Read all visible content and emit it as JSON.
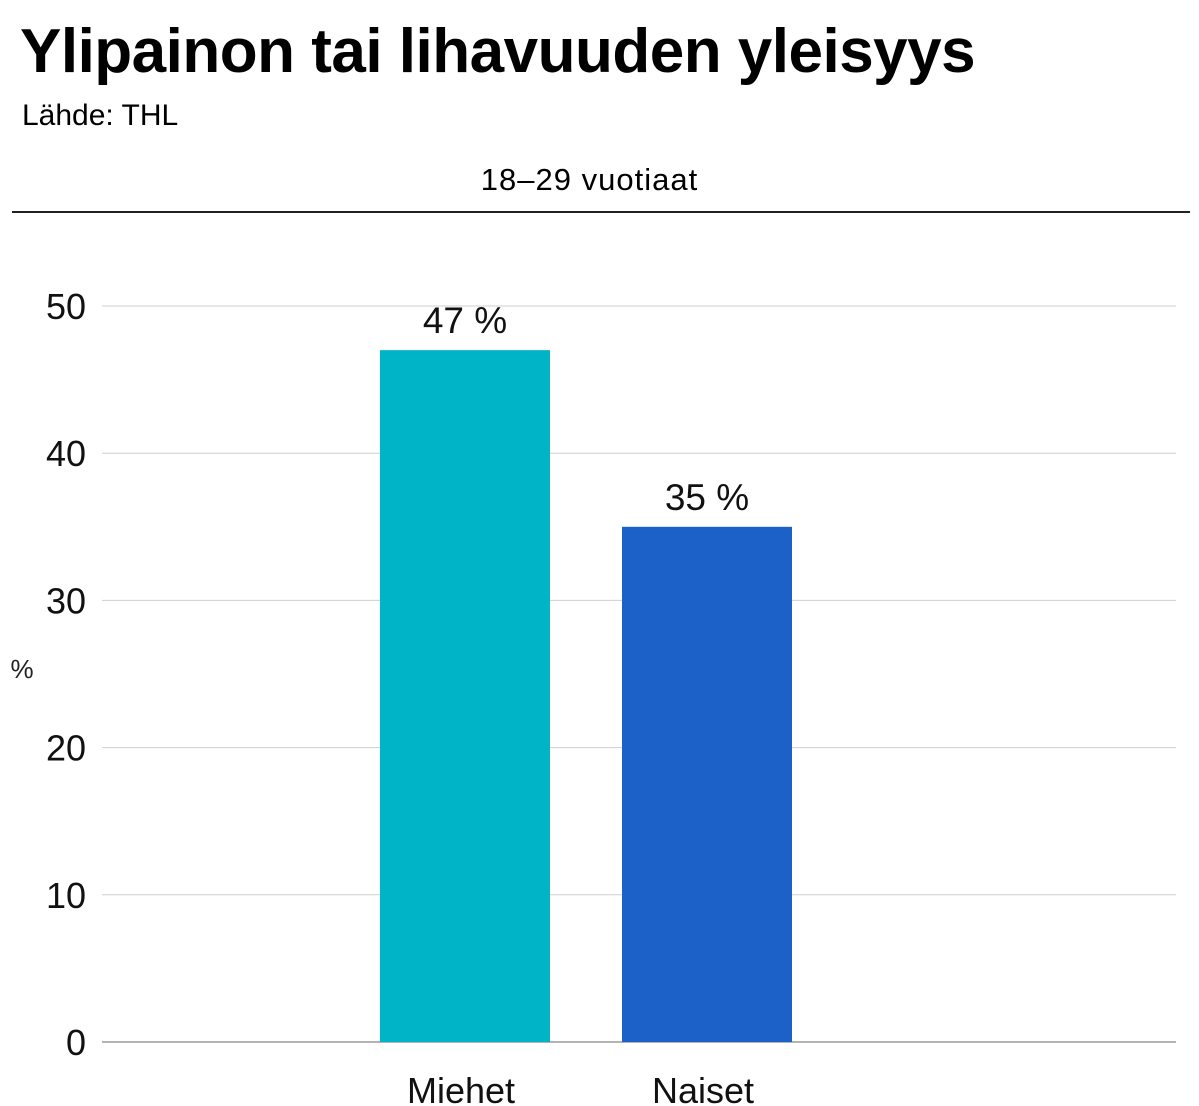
{
  "header": {
    "title": "Ylipainon tai lihavuuden yleisyys",
    "source": "Lähde: THL"
  },
  "chart_data": {
    "type": "bar",
    "title": "Ylipainon tai lihavuuden yleisyys",
    "subtitle": "18–29 vuotiaat",
    "categories": [
      "Miehet",
      "Naiset"
    ],
    "values": [
      47,
      35
    ],
    "data_labels": [
      "47 %",
      "35 %"
    ],
    "colors": [
      "#00b4c8",
      "#1c61c8"
    ],
    "xlabel": "",
    "ylabel": "%",
    "ylim": [
      0,
      50
    ],
    "yticks": [
      0,
      10,
      20,
      30,
      40,
      50
    ],
    "ytick_labels": [
      "0",
      "10",
      "20",
      "30",
      "40",
      "50"
    ],
    "grid": true,
    "legend": "none"
  }
}
